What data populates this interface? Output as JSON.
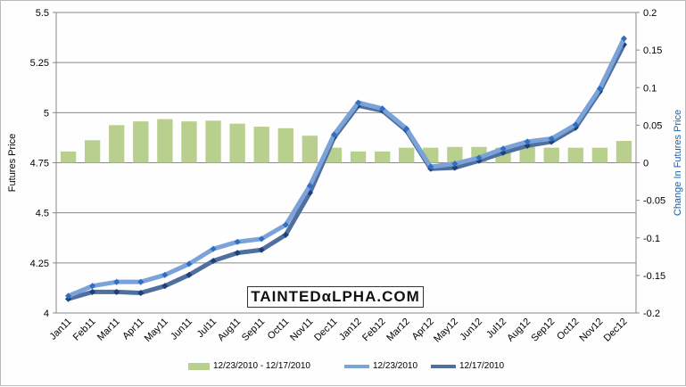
{
  "chart_data": {
    "type": "bar+line",
    "categories": [
      "Jan11",
      "Feb11",
      "Mar11",
      "Apr11",
      "May11",
      "Jun11",
      "Jul11",
      "Aug11",
      "Sep11",
      "Oct11",
      "Nov11",
      "Dec11",
      "Jan12",
      "Feb12",
      "Mar12",
      "Apr12",
      "May12",
      "Jun12",
      "Jul12",
      "Aug12",
      "Sep12",
      "Oct12",
      "Nov12",
      "Dec12"
    ],
    "series": [
      {
        "name": "12/23/2010  - 12/17/2010",
        "type": "bar",
        "axis": "right",
        "color": "#b9cf8e",
        "values": [
          0.015,
          0.03,
          0.05,
          0.055,
          0.058,
          0.055,
          0.056,
          0.052,
          0.048,
          0.046,
          0.036,
          0.02,
          0.015,
          0.015,
          0.02,
          0.02,
          0.021,
          0.021,
          0.02,
          0.021,
          0.02,
          0.02,
          0.02,
          0.029
        ]
      },
      {
        "name": "12/23/2010",
        "type": "line",
        "axis": "left",
        "color": "#7ba3d9",
        "values": [
          4.085,
          4.135,
          4.155,
          4.155,
          4.19,
          4.245,
          4.32,
          4.355,
          4.37,
          4.44,
          4.635,
          4.89,
          5.05,
          5.02,
          4.92,
          4.73,
          4.745,
          4.775,
          4.82,
          4.855,
          4.87,
          4.94,
          5.12,
          5.37
        ]
      },
      {
        "name": "12/17/2010",
        "type": "line",
        "axis": "left",
        "color": "#4f6f9f",
        "values": [
          4.07,
          4.105,
          4.105,
          4.1,
          4.135,
          4.19,
          4.26,
          4.3,
          4.315,
          4.39,
          4.6,
          4.875,
          5.035,
          5.01,
          4.91,
          4.72,
          4.725,
          4.76,
          4.8,
          4.835,
          4.855,
          4.925,
          5.105,
          5.34
        ]
      }
    ],
    "ylabel": "Futures Price",
    "ylim": [
      4,
      5.5
    ],
    "yticks": [
      "4",
      "4.25",
      "4.5",
      "4.75",
      "5",
      "5.25",
      "5.5"
    ],
    "y2label": "Change In Futures Price",
    "y2lim": [
      -0.2,
      0.2
    ],
    "y2ticks": [
      "-0.2",
      "-0.15",
      "-0.1",
      "-0.05",
      "0",
      "0.05",
      "0.1",
      "0.15",
      "0.2"
    ],
    "grid": true,
    "legend": "bottom"
  },
  "watermark": "TAINTEDαLPHA.COM"
}
